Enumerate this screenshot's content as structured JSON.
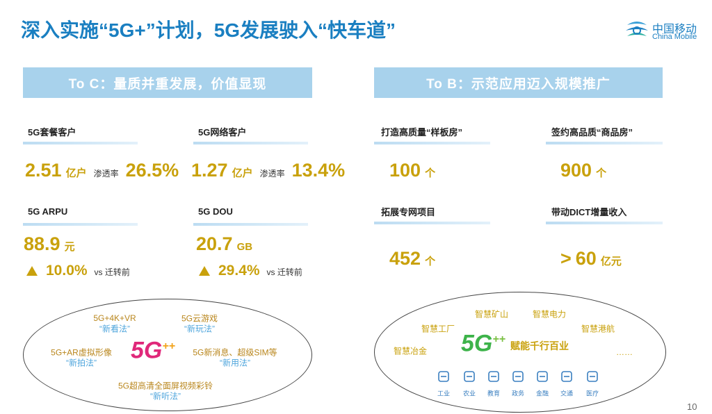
{
  "header": {
    "title": "深入实施“5G+”计划，5G发展驶入“快车道”",
    "logo": {
      "cn": "中国移动",
      "en": "China Mobile"
    }
  },
  "to_c": {
    "heading": "To C：量质并重发展，价值显现",
    "metrics": [
      {
        "label": "5G套餐客户",
        "value": "2.51",
        "unit": "亿户",
        "rate_label": "渗透率",
        "rate": "26.5%"
      },
      {
        "label": "5G网络客户",
        "value": "1.27",
        "unit": "亿户",
        "rate_label": "渗透率",
        "rate": "13.4%"
      },
      {
        "label": "5G ARPU",
        "value": "88.9",
        "unit": "元",
        "change": "10.0%",
        "compare": "vs 迁转前"
      },
      {
        "label": "5G  DOU",
        "value": "20.7",
        "unit": "GB",
        "change": "29.4%",
        "compare": "vs 迁转前"
      }
    ],
    "scenarios": {
      "logo": "5G",
      "logo_plus": "++",
      "items": [
        {
          "name": "5G+4K+VR",
          "tag": "“新看法”"
        },
        {
          "name": "5G云游戏",
          "tag": "“新玩法”"
        },
        {
          "name": "5G+AR虚拟形像",
          "tag": "“新拍法”"
        },
        {
          "name": "5G新消息、超级SIM等",
          "tag": "“新用法”"
        },
        {
          "name": "5G超高清全面屏视频彩铃",
          "tag": "“新听法”"
        }
      ]
    }
  },
  "to_b": {
    "heading": "To B：示范应用迈入规模推广",
    "metrics": [
      {
        "label": "打造高质量“样板房”",
        "value": "100",
        "unit": "个"
      },
      {
        "label": "签约高品质“商品房”",
        "value": "900",
        "unit": "个"
      },
      {
        "label": "拓展专网项目",
        "value": "452",
        "unit": "个"
      },
      {
        "label": "带动DICT增量收入",
        "prefix": ">",
        "value": "60",
        "unit": "亿元"
      }
    ],
    "industries": {
      "logo": "5G",
      "logo_plus": "++",
      "slogan": "赋能千行百业",
      "items": [
        "智慧矿山",
        "智慧电力",
        "智慧工厂",
        "智慧港航",
        "智慧冶金",
        "……"
      ],
      "sectors": [
        "工业",
        "农业",
        "教育",
        "政务",
        "金融",
        "交通",
        "医疗"
      ]
    }
  },
  "page_number": "10"
}
